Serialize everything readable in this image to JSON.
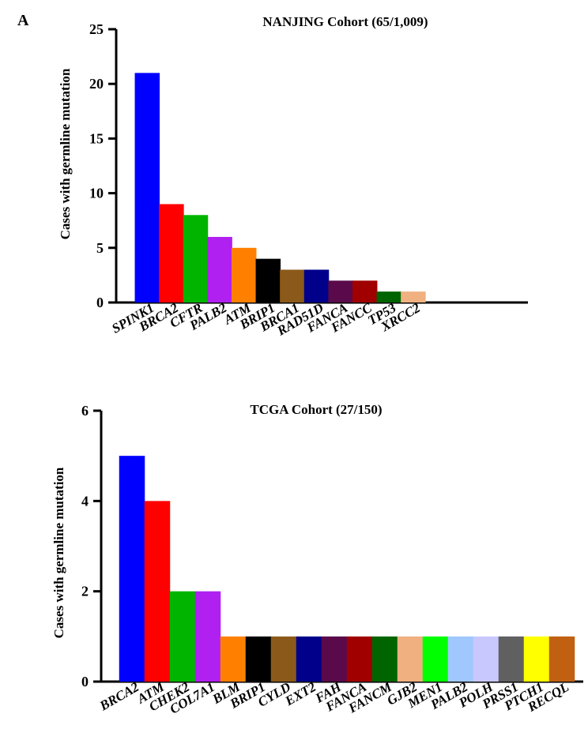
{
  "panel_label": "A",
  "chart_data": [
    {
      "type": "bar",
      "title": "NANJING Cohort (65/1,009)",
      "xlabel": "",
      "ylabel": "Cases with germline mutation",
      "ylim": [
        0,
        25
      ],
      "yticks": [
        0,
        5,
        10,
        15,
        20,
        25
      ],
      "grid": false,
      "categories": [
        "SPINK1",
        "BRCA2",
        "CFTR",
        "PALB2",
        "ATM",
        "BRIP1",
        "BRCA1",
        "RAD51D",
        "FANCA",
        "FANCC",
        "TP53",
        "XRCC2"
      ],
      "values": [
        21,
        9,
        8,
        6,
        5,
        4,
        3,
        3,
        2,
        2,
        1,
        1
      ],
      "colors": [
        "#0000ff",
        "#ff0000",
        "#00b400",
        "#b020f0",
        "#ff8000",
        "#000000",
        "#8b5a1a",
        "#00008b",
        "#5a0a4a",
        "#a00000",
        "#006400",
        "#f0b080"
      ]
    },
    {
      "type": "bar",
      "title": "TCGA Cohort (27/150)",
      "xlabel": "",
      "ylabel": "Cases with germline mutation",
      "ylim": [
        0,
        6
      ],
      "yticks": [
        0,
        2,
        4,
        6
      ],
      "grid": false,
      "categories": [
        "BRCA2",
        "ATM",
        "CHEK2",
        "COL7A1",
        "BLM",
        "BRIP1",
        "CYLD",
        "EXT2",
        "FAH",
        "FANCA",
        "FANCM",
        "GJB2",
        "MEN1",
        "PALB2",
        "POLH",
        "PRSS1",
        "PTCH1",
        "RECQL"
      ],
      "values": [
        5,
        4,
        2,
        2,
        1,
        1,
        1,
        1,
        1,
        1,
        1,
        1,
        1,
        1,
        1,
        1,
        1,
        1
      ],
      "colors": [
        "#0000ff",
        "#ff0000",
        "#00b400",
        "#b020f0",
        "#ff8000",
        "#000000",
        "#8b5a1a",
        "#00008b",
        "#5a0a4a",
        "#a00000",
        "#006400",
        "#f0b080",
        "#00ff00",
        "#a0c8ff",
        "#c8c8ff",
        "#606060",
        "#ffff00",
        "#c06010"
      ]
    }
  ]
}
